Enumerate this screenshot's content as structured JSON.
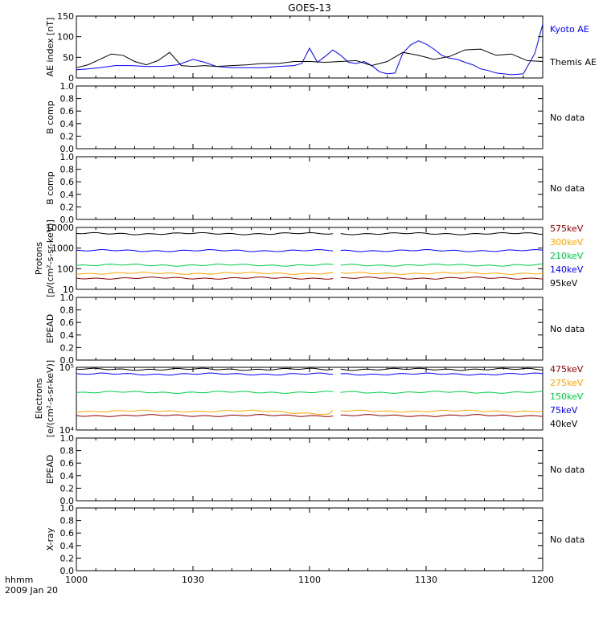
{
  "title": "GOES-13",
  "time_label": "hhmm",
  "date_label": "2009 Jan 20",
  "no_data_label": "No data",
  "chart_data": [
    {
      "type": "line",
      "panel": "ae",
      "ylabel": "AE index [nT]",
      "ylim": [
        0,
        150
      ],
      "yticks": [
        0,
        50,
        100,
        150
      ],
      "x_unit": "minutes since 10:00",
      "series": [
        {
          "name": "Kyoto AE",
          "color": "#0000ff",
          "x": [
            0,
            3,
            6,
            10,
            14,
            18,
            22,
            26,
            30,
            33,
            36,
            40,
            44,
            48,
            52,
            56,
            58,
            60,
            62,
            64,
            66,
            68,
            70,
            72,
            74,
            76,
            78,
            80,
            82,
            84,
            86,
            88,
            90,
            92,
            94,
            96,
            98,
            100,
            102,
            104,
            106,
            108,
            110,
            112,
            115,
            118,
            120
          ],
          "y": [
            20,
            22,
            25,
            30,
            30,
            28,
            28,
            32,
            45,
            38,
            28,
            25,
            25,
            25,
            28,
            30,
            35,
            72,
            38,
            52,
            68,
            55,
            38,
            35,
            40,
            30,
            15,
            10,
            12,
            60,
            80,
            90,
            82,
            70,
            55,
            48,
            45,
            38,
            32,
            22,
            18,
            12,
            10,
            8,
            10,
            60,
            130
          ]
        },
        {
          "name": "Themis AE",
          "color": "#000000",
          "x": [
            0,
            3,
            6,
            9,
            12,
            15,
            18,
            21,
            24,
            27,
            30,
            33,
            36,
            40,
            44,
            48,
            52,
            56,
            60,
            64,
            68,
            72,
            76,
            80,
            84,
            88,
            92,
            96,
            100,
            104,
            108,
            112,
            116,
            120
          ],
          "y": [
            25,
            32,
            45,
            58,
            55,
            40,
            32,
            42,
            62,
            30,
            28,
            30,
            28,
            30,
            32,
            35,
            35,
            40,
            40,
            38,
            40,
            42,
            30,
            40,
            62,
            55,
            45,
            52,
            68,
            70,
            55,
            58,
            42,
            40
          ]
        }
      ]
    },
    {
      "type": "line",
      "panel": "b-comp-1",
      "ylabel": "B comp",
      "ylim": [
        0,
        1
      ],
      "yticks": [
        "0.0",
        "0.2",
        "0.4",
        "0.6",
        "0.8",
        "1.0"
      ],
      "status": "No data",
      "series": []
    },
    {
      "type": "line",
      "panel": "b-comp-2",
      "ylabel": "B comp",
      "ylim": [
        0,
        1
      ],
      "yticks": [
        "0.0",
        "0.2",
        "0.4",
        "0.6",
        "0.8",
        "1.0"
      ],
      "status": "No data",
      "series": []
    },
    {
      "type": "line",
      "panel": "protons",
      "ylabel": "Protons",
      "ylabel2": "[p/(cm²-s-sr-keV)]",
      "yscale": "log",
      "ylim": [
        10,
        10000
      ],
      "yticks": [
        10,
        100,
        1000,
        10000
      ],
      "gap": [
        66,
        68
      ],
      "series": [
        {
          "name": "575keV",
          "color": "#8b0000",
          "level": 35
        },
        {
          "name": "300keV",
          "color": "#ffa500",
          "level": 60
        },
        {
          "name": "210keV",
          "color": "#00cc44",
          "level": 150
        },
        {
          "name": "140keV",
          "color": "#0000ff",
          "level": 750
        },
        {
          "name": "95keV",
          "color": "#000000",
          "level": 5000
        }
      ]
    },
    {
      "type": "line",
      "panel": "epead-1",
      "ylabel": "EPEAD",
      "ylim": [
        0,
        1
      ],
      "yticks": [
        "0.0",
        "0.2",
        "0.4",
        "0.6",
        "0.8",
        "1.0"
      ],
      "status": "No data",
      "series": []
    },
    {
      "type": "line",
      "panel": "electrons",
      "ylabel": "Electrons",
      "ylabel2": "[e/(cm²-s-sr-keV)]",
      "yscale": "log",
      "ylim": [
        10000,
        100000
      ],
      "yticks": [
        "10⁴",
        "10⁵"
      ],
      "gap": [
        66,
        68
      ],
      "series": [
        {
          "name": "475keV",
          "color": "#8b0000",
          "level": 17000
        },
        {
          "name": "275keV",
          "color": "#ffa500",
          "level": 20000
        },
        {
          "name": "150keV",
          "color": "#00cc44",
          "level": 40000
        },
        {
          "name": "75keV",
          "color": "#0000ff",
          "level": 78000
        },
        {
          "name": "40keV",
          "color": "#000000",
          "level": 93000
        }
      ]
    },
    {
      "type": "line",
      "panel": "epead-2",
      "ylabel": "EPEAD",
      "ylim": [
        0,
        1
      ],
      "yticks": [
        "0.0",
        "0.2",
        "0.4",
        "0.6",
        "0.8",
        "1.0"
      ],
      "status": "No data",
      "series": []
    },
    {
      "type": "line",
      "panel": "xray",
      "ylabel": "X-ray",
      "ylim": [
        0,
        1
      ],
      "yticks": [
        "0.0",
        "0.2",
        "0.4",
        "0.6",
        "0.8",
        "1.0"
      ],
      "status": "No data",
      "series": []
    }
  ],
  "xaxis": {
    "xlim": [
      0,
      120
    ],
    "tick_minutes": [
      0,
      30,
      60,
      90,
      120
    ],
    "tick_labels": [
      "1000",
      "1030",
      "1100",
      "1130",
      "1200"
    ]
  }
}
